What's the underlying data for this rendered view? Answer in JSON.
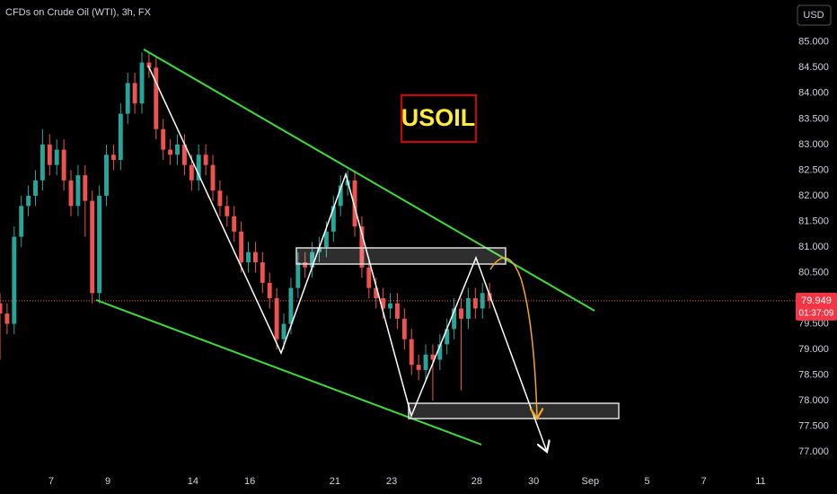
{
  "chart_data": {
    "type": "candlestick",
    "title": "CFDs on Crude Oil (WTI), 3h, FX",
    "annotation": "USOIL",
    "currency": "USD",
    "countdown": "01:37:09",
    "up_color": "#26a69a",
    "down_color": "#ef5350",
    "x": [
      -1.8,
      -1.55,
      -1.3,
      -1.05,
      -0.8,
      -0.55,
      -0.3,
      -0.05,
      0.2,
      0.45,
      0.7,
      0.95,
      1.2,
      1.45,
      1.7,
      1.95,
      2.2,
      2.45,
      2.7,
      2.95,
      3.2,
      3.45,
      3.7,
      3.95,
      4.2,
      4.45,
      4.7,
      4.95,
      5.2,
      5.45,
      5.7,
      5.95,
      6.2,
      6.45,
      6.7,
      6.95,
      7.2,
      7.45,
      7.7,
      7.95,
      8.2,
      8.45,
      8.7,
      8.95,
      9.2,
      9.45,
      9.7,
      9.95,
      10.2,
      10.45,
      10.7,
      10.95,
      11.2,
      11.45,
      11.7,
      11.95,
      12.2,
      12.45,
      12.7,
      12.95,
      13.2,
      13.45,
      13.7,
      13.95,
      14.2,
      14.45,
      14.7,
      14.95,
      15.2,
      15.45
    ],
    "open": [
      79.9,
      79.7,
      79.5,
      81.2,
      81.8,
      82.0,
      82.3,
      83.0,
      82.6,
      82.9,
      82.3,
      81.8,
      82.4,
      81.9,
      80.1,
      82.0,
      82.8,
      82.7,
      83.6,
      84.2,
      83.8,
      84.6,
      84.5,
      83.3,
      82.9,
      82.8,
      83.0,
      82.6,
      82.3,
      82.8,
      82.6,
      82.1,
      81.8,
      81.6,
      81.3,
      80.7,
      80.9,
      80.7,
      80.3,
      80.0,
      79.2,
      79.5,
      80.2,
      80.7,
      80.6,
      80.9,
      81.0,
      81.3,
      81.8,
      82.2,
      82.3,
      81.4,
      80.6,
      80.2,
      80.0,
      79.8,
      79.9,
      79.6,
      79.2,
      78.7,
      78.6,
      78.9,
      78.8,
      79.1,
      79.4,
      79.8,
      79.6,
      80.0,
      79.8,
      80.1
    ],
    "high": [
      80.1,
      79.9,
      81.4,
      82.0,
      82.2,
      82.5,
      83.3,
      83.2,
      83.1,
      83.1,
      82.5,
      82.6,
      82.6,
      82.1,
      82.2,
      83.0,
      83.0,
      83.8,
      84.4,
      84.4,
      84.8,
      84.8,
      84.7,
      83.5,
      83.1,
      83.2,
      83.2,
      82.8,
      83.0,
      83.0,
      82.8,
      82.3,
      82.0,
      81.8,
      81.5,
      81.1,
      81.1,
      80.9,
      80.5,
      80.2,
      79.7,
      80.4,
      80.9,
      80.9,
      81.1,
      81.2,
      81.5,
      82.0,
      82.4,
      82.5,
      82.5,
      81.6,
      80.8,
      80.4,
      80.2,
      80.1,
      80.1,
      79.8,
      79.4,
      78.9,
      79.1,
      79.1,
      79.3,
      79.6,
      80.0,
      80.0,
      80.2,
      80.2,
      80.3,
      80.3
    ],
    "low": [
      78.8,
      79.3,
      79.3,
      81.0,
      81.6,
      81.8,
      82.1,
      82.4,
      82.4,
      82.1,
      81.6,
      81.6,
      81.2,
      79.9,
      79.9,
      81.8,
      82.5,
      82.5,
      83.4,
      83.6,
      83.6,
      84.3,
      83.1,
      82.7,
      82.6,
      82.6,
      82.4,
      82.1,
      82.1,
      82.4,
      81.9,
      81.6,
      81.4,
      81.1,
      80.5,
      80.5,
      80.5,
      80.1,
      79.8,
      79.0,
      79.0,
      79.3,
      80.0,
      80.4,
      80.4,
      80.7,
      80.8,
      81.1,
      81.6,
      82.0,
      81.2,
      80.4,
      80.0,
      79.8,
      79.6,
      79.6,
      79.4,
      79.0,
      78.5,
      78.4,
      78.4,
      78.0,
      78.6,
      78.9,
      79.2,
      78.2,
      79.4,
      79.6,
      79.6,
      79.8
    ],
    "close": [
      79.7,
      79.5,
      81.2,
      81.8,
      82.0,
      82.3,
      83.0,
      82.6,
      82.9,
      82.3,
      81.8,
      82.4,
      81.9,
      80.1,
      82.0,
      82.8,
      82.7,
      83.6,
      84.2,
      83.8,
      84.6,
      84.5,
      83.3,
      82.9,
      82.8,
      83.0,
      82.6,
      82.3,
      82.8,
      82.6,
      82.1,
      81.8,
      81.6,
      81.3,
      80.7,
      80.9,
      80.7,
      80.3,
      80.0,
      79.2,
      79.5,
      80.2,
      80.7,
      80.6,
      80.9,
      81.0,
      81.3,
      81.8,
      82.2,
      82.3,
      81.4,
      80.6,
      80.2,
      80.0,
      79.8,
      79.9,
      79.6,
      79.2,
      78.7,
      78.6,
      78.9,
      78.8,
      79.1,
      79.4,
      79.8,
      79.6,
      80.0,
      79.8,
      80.1,
      79.949
    ],
    "xlim": [
      -1.8,
      25.73
    ],
    "ylim": [
      76.67,
      85.82
    ],
    "xticks": [
      {
        "value": 0,
        "label": "7"
      },
      {
        "value": 2,
        "label": "9"
      },
      {
        "value": 5,
        "label": "14"
      },
      {
        "value": 7,
        "label": "16"
      },
      {
        "value": 10,
        "label": "21"
      },
      {
        "value": 12,
        "label": "23"
      },
      {
        "value": 15,
        "label": "28"
      },
      {
        "value": 17,
        "label": "30"
      },
      {
        "value": 19,
        "label": "Sep"
      },
      {
        "value": 21,
        "label": "5"
      },
      {
        "value": 23,
        "label": "7"
      },
      {
        "value": 25,
        "label": "11"
      }
    ],
    "yticks": [
      {
        "value": 77,
        "label": "77.000"
      },
      {
        "value": 77.5,
        "label": "77.500"
      },
      {
        "value": 78,
        "label": "78.000"
      },
      {
        "value": 78.5,
        "label": "78.500"
      },
      {
        "value": 79,
        "label": "79.000"
      },
      {
        "value": 79.5,
        "label": "79.500"
      },
      {
        "value": 80,
        "label": "80.000"
      },
      {
        "value": 80.5,
        "label": "80.500"
      },
      {
        "value": 81,
        "label": "81.000"
      },
      {
        "value": 81.5,
        "label": "81.500"
      },
      {
        "value": 82,
        "label": "82.000"
      },
      {
        "value": 82.5,
        "label": "82.500"
      },
      {
        "value": 83,
        "label": "83.000"
      },
      {
        "value": 83.5,
        "label": "83.500"
      },
      {
        "value": 84,
        "label": "84.000"
      },
      {
        "value": 84.5,
        "label": "84.500"
      },
      {
        "value": 85,
        "label": "85.000"
      }
    ]
  }
}
